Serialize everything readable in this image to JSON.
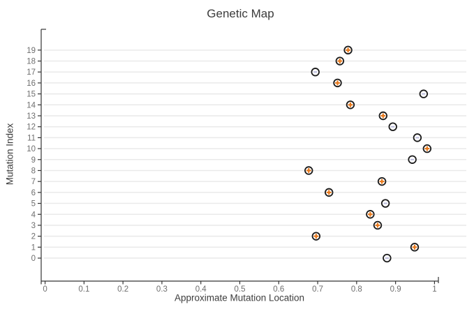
{
  "chart_data": {
    "type": "scatter",
    "title": "Genetic Map",
    "xlabel": "Approximate Mutation Location",
    "ylabel": "Mutation Index",
    "xlim": [
      -0.01,
      1.01
    ],
    "ylim": [
      -2.1,
      20.9
    ],
    "x_tick_values": [
      0,
      0.1,
      0.2,
      0.3,
      0.4,
      0.5,
      0.6,
      0.7,
      0.8,
      0.9,
      1
    ],
    "x_tick_labels": [
      "0",
      "0.1",
      "0.2",
      "0.3",
      "0.4",
      "0.5",
      "0.6",
      "0.7",
      "0.8",
      "0.9",
      "1"
    ],
    "y_tick_values": [
      0,
      1,
      2,
      3,
      4,
      5,
      6,
      7,
      8,
      9,
      10,
      11,
      12,
      13,
      14,
      15,
      16,
      17,
      18,
      19
    ],
    "grid": "horizontal-only",
    "legend": "none",
    "marker_styles": {
      "plus": "open circle with orange plus symbol inside",
      "minus": "open circle with light lavender minus symbol inside"
    },
    "points": [
      {
        "index": 0,
        "location": 0.878,
        "sign": "minus"
      },
      {
        "index": 1,
        "location": 0.949,
        "sign": "plus"
      },
      {
        "index": 2,
        "location": 0.696,
        "sign": "plus"
      },
      {
        "index": 3,
        "location": 0.854,
        "sign": "plus"
      },
      {
        "index": 4,
        "location": 0.835,
        "sign": "plus"
      },
      {
        "index": 5,
        "location": 0.874,
        "sign": "minus"
      },
      {
        "index": 6,
        "location": 0.729,
        "sign": "plus"
      },
      {
        "index": 7,
        "location": 0.865,
        "sign": "plus"
      },
      {
        "index": 8,
        "location": 0.677,
        "sign": "plus"
      },
      {
        "index": 9,
        "location": 0.943,
        "sign": "minus"
      },
      {
        "index": 10,
        "location": 0.981,
        "sign": "plus"
      },
      {
        "index": 11,
        "location": 0.956,
        "sign": "minus"
      },
      {
        "index": 12,
        "location": 0.893,
        "sign": "minus"
      },
      {
        "index": 13,
        "location": 0.868,
        "sign": "plus"
      },
      {
        "index": 14,
        "location": 0.784,
        "sign": "plus"
      },
      {
        "index": 15,
        "location": 0.972,
        "sign": "minus"
      },
      {
        "index": 16,
        "location": 0.751,
        "sign": "plus"
      },
      {
        "index": 17,
        "location": 0.694,
        "sign": "minus"
      },
      {
        "index": 18,
        "location": 0.757,
        "sign": "plus"
      },
      {
        "index": 19,
        "location": 0.778,
        "sign": "plus"
      }
    ]
  },
  "colors": {
    "background": "#ffffff",
    "title_text": "#3b3b3b",
    "axis_label_text": "#3d3d3d",
    "tick_text": "#6e6e6e",
    "axis_line": "#333333",
    "grid_line": "#e9e9e9",
    "marker_outline": "#1a1a1a",
    "marker_fill": "#ffffff",
    "plus_symbol": "#e8791c",
    "minus_symbol": "#b9badc"
  }
}
